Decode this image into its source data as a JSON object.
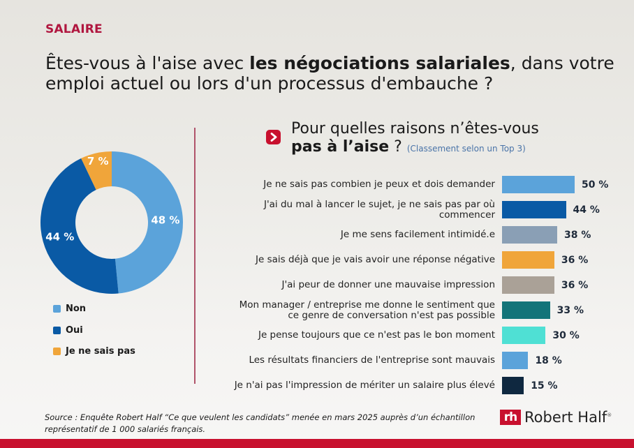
{
  "header": {
    "category": "SALAIRE",
    "title_part1": "Êtes-vous à l'aise avec ",
    "title_bold": "les négociations salariales",
    "title_part2": ", dans votre emploi actuel ou lors d'un processus d'embauche ?"
  },
  "subheader": {
    "icon": "chevron-right-icon",
    "title_part1": "Pour quelles raisons n’êtes-vous ",
    "title_bold": "pas à l’aise",
    "title_part2": " ? ",
    "note": "(Classement selon un Top 3)"
  },
  "colors": {
    "brand": "#c8102e",
    "category": "#b0163f",
    "non": "#5ba3da",
    "oui": "#0a5aa5",
    "nsp": "#f0a53a"
  },
  "chart_data": [
    {
      "type": "pie",
      "subtype": "donut",
      "title": "Êtes-vous à l'aise avec les négociations salariales, dans votre emploi actuel ou lors d'un processus d'embauche ?",
      "categories": [
        "Non",
        "Oui",
        "Je ne sais pas"
      ],
      "values": [
        48,
        44,
        7
      ],
      "labels": [
        "48 %",
        "44 %",
        "7 %"
      ],
      "colors": [
        "#5ba3da",
        "#0a5aa5",
        "#f0a53a"
      ],
      "legend": "bottom-left"
    },
    {
      "type": "bar",
      "orientation": "horizontal",
      "title": "Pour quelles raisons n’êtes-vous pas à l’aise ? (Classement selon un Top 3)",
      "categories": [
        "Je ne sais pas combien je peux et dois demander",
        "J'ai du mal à lancer le sujet, je ne sais pas par où commencer",
        "Je me sens facilement intimidé.e",
        "Je sais déjà que je vais avoir une réponse négative",
        "J'ai peur de donner une mauvaise impression",
        "Mon manager / entreprise me donne le sentiment que ce genre de conversation n'est pas possible",
        "Je pense toujours que ce n'est pas le bon moment",
        "Les résultats financiers de l'entreprise sont mauvais",
        "Je n'ai pas l'impression de mériter un salaire plus élevé"
      ],
      "label_lines": [
        [
          "Je ne sais pas combien je peux et dois demander"
        ],
        [
          "J'ai du mal à lancer le sujet, je ne sais pas par où",
          "commencer"
        ],
        [
          "Je me sens facilement intimidé.e"
        ],
        [
          "Je sais déjà que je vais avoir une réponse négative"
        ],
        [
          "J'ai peur de donner une mauvaise impression"
        ],
        [
          "Mon manager / entreprise me donne le sentiment que",
          "ce genre de conversation n'est pas possible"
        ],
        [
          "Je pense toujours que ce n'est pas le bon moment"
        ],
        [
          "Les résultats financiers de l'entreprise sont mauvais"
        ],
        [
          "Je n'ai pas l'impression de mériter un salaire plus élevé"
        ]
      ],
      "values": [
        50,
        44,
        38,
        36,
        36,
        33,
        30,
        18,
        15
      ],
      "value_labels": [
        "50 %",
        "44 %",
        "38 %",
        "36 %",
        "36 %",
        "33 %",
        "30 %",
        "18 %",
        "15 %"
      ],
      "colors": [
        "#5ba3da",
        "#0a5aa5",
        "#8a9fb5",
        "#f0a53a",
        "#aaa197",
        "#137479",
        "#4fe0d4",
        "#5ba3da",
        "#0f2840"
      ],
      "unit": "%",
      "xlim": [
        0,
        50
      ],
      "grid": false
    }
  ],
  "footer": {
    "source_line1": "Source : Enquête Robert Half “Ce que veulent les candidats” menée en mars 2025 auprès d’un échantillon",
    "source_line2": "représentatif de 1 000 salariés français.",
    "logo_mark": "rh",
    "logo_text": "Robert Half",
    "logo_reg": "®"
  }
}
